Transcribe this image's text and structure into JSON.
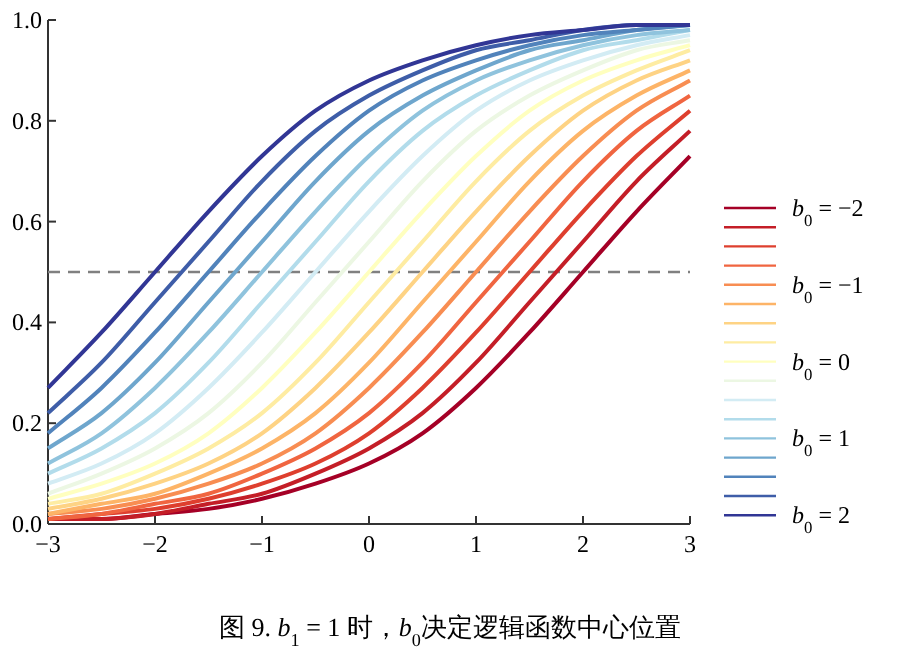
{
  "chart_data": {
    "type": "line",
    "title": "图 9. *b*$_{1}$ = 1 时，*b*$_{0}$决定逻辑函数中心位置",
    "x": [
      -3,
      -2.5,
      -2,
      -1.5,
      -1,
      -0.5,
      0,
      0.5,
      1,
      1.5,
      2,
      2.5,
      3
    ],
    "xlim": [
      -3,
      3
    ],
    "xticks": [
      -3,
      -2,
      -1,
      0,
      1,
      2,
      3
    ],
    "ylim": [
      0,
      1
    ],
    "yticks": [
      {
        "value": 0,
        "label": "0.0"
      },
      {
        "value": 0.2,
        "label": "0.2"
      },
      {
        "value": 0.4,
        "label": "0.4"
      },
      {
        "value": 0.6,
        "label": "0.6"
      },
      {
        "value": 0.8,
        "label": "0.8"
      },
      {
        "value": 1,
        "label": "1.0"
      }
    ],
    "legend": "right",
    "ref_lines": [
      {
        "axis": "y",
        "value": 0.5,
        "color": "#808080",
        "line_style": "dashed"
      }
    ],
    "series": [
      {
        "name": "*b*$_{0}$ = −2",
        "color": "#a50026",
        "values": [
          0.01,
          0.01,
          0.02,
          0.03,
          0.05,
          0.08,
          0.12,
          0.18,
          0.27,
          0.38,
          0.5,
          0.62,
          0.73
        ]
      },
      {
        "color": "#c41e27",
        "values": [
          0.01,
          0.01,
          0.02,
          0.04,
          0.06,
          0.1,
          0.15,
          0.22,
          0.32,
          0.44,
          0.56,
          0.68,
          0.78
        ]
      },
      {
        "color": "#de3f2e",
        "values": [
          0.01,
          0.02,
          0.03,
          0.05,
          0.08,
          0.12,
          0.18,
          0.27,
          0.38,
          0.5,
          0.62,
          0.73,
          0.82
        ]
      },
      {
        "color": "#f06540",
        "values": [
          0.01,
          0.02,
          0.04,
          0.06,
          0.1,
          0.15,
          0.22,
          0.32,
          0.44,
          0.56,
          0.68,
          0.78,
          0.85
        ]
      },
      {
        "name": "*b*$_{0}$ = −1",
        "color": "#f88d52",
        "values": [
          0.02,
          0.03,
          0.05,
          0.08,
          0.12,
          0.18,
          0.27,
          0.38,
          0.5,
          0.62,
          0.73,
          0.82,
          0.88
        ]
      },
      {
        "color": "#fdb467",
        "values": [
          0.02,
          0.04,
          0.06,
          0.1,
          0.15,
          0.22,
          0.32,
          0.44,
          0.56,
          0.68,
          0.78,
          0.85,
          0.9
        ]
      },
      {
        "color": "#fed384",
        "values": [
          0.03,
          0.05,
          0.08,
          0.12,
          0.18,
          0.27,
          0.38,
          0.5,
          0.62,
          0.73,
          0.82,
          0.88,
          0.92
        ]
      },
      {
        "color": "#feeca2",
        "values": [
          0.04,
          0.06,
          0.1,
          0.15,
          0.22,
          0.32,
          0.44,
          0.56,
          0.68,
          0.78,
          0.85,
          0.9,
          0.94
        ]
      },
      {
        "name": "*b*$_{0}$ = 0",
        "color": "#ffffbf",
        "values": [
          0.05,
          0.08,
          0.12,
          0.18,
          0.27,
          0.38,
          0.5,
          0.62,
          0.73,
          0.82,
          0.88,
          0.92,
          0.95
        ]
      },
      {
        "color": "#ecf7e3",
        "values": [
          0.06,
          0.1,
          0.15,
          0.22,
          0.32,
          0.44,
          0.56,
          0.68,
          0.78,
          0.85,
          0.9,
          0.94,
          0.96
        ]
      },
      {
        "color": "#d3ecf4",
        "values": [
          0.08,
          0.12,
          0.18,
          0.27,
          0.38,
          0.5,
          0.62,
          0.73,
          0.82,
          0.88,
          0.92,
          0.95,
          0.97
        ]
      },
      {
        "color": "#b2dceb",
        "values": [
          0.1,
          0.15,
          0.22,
          0.32,
          0.44,
          0.56,
          0.68,
          0.78,
          0.85,
          0.9,
          0.94,
          0.96,
          0.98
        ]
      },
      {
        "name": "*b*$_{0}$ = 1",
        "color": "#8fc3dd",
        "values": [
          0.12,
          0.18,
          0.27,
          0.38,
          0.5,
          0.62,
          0.73,
          0.82,
          0.88,
          0.92,
          0.95,
          0.97,
          0.98
        ]
      },
      {
        "color": "#6ea6cd",
        "values": [
          0.15,
          0.22,
          0.32,
          0.44,
          0.56,
          0.68,
          0.78,
          0.85,
          0.9,
          0.94,
          0.96,
          0.98,
          0.99
        ]
      },
      {
        "color": "#5183bb",
        "values": [
          0.18,
          0.27,
          0.38,
          0.5,
          0.62,
          0.73,
          0.82,
          0.88,
          0.92,
          0.95,
          0.97,
          0.98,
          0.99
        ]
      },
      {
        "color": "#3e5da8",
        "values": [
          0.22,
          0.32,
          0.44,
          0.56,
          0.68,
          0.78,
          0.85,
          0.9,
          0.94,
          0.96,
          0.98,
          0.99,
          0.99
        ]
      },
      {
        "name": "*b*$_{0}$ = 2",
        "color": "#313695",
        "values": [
          0.27,
          0.38,
          0.5,
          0.62,
          0.73,
          0.82,
          0.88,
          0.92,
          0.95,
          0.97,
          0.98,
          0.99,
          0.99
        ]
      }
    ]
  }
}
